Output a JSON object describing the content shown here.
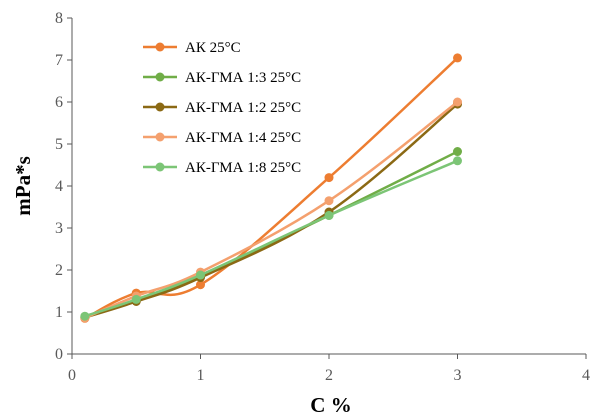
{
  "chart_data": {
    "type": "line",
    "title": "",
    "xlabel": "C %",
    "ylabel": "mPa*s",
    "xlim": [
      0,
      4
    ],
    "ylim": [
      0,
      8
    ],
    "x_ticks": [
      "0",
      "1",
      "2",
      "3",
      "4"
    ],
    "y_ticks": [
      "0",
      "1",
      "2",
      "3",
      "4",
      "5",
      "6",
      "7",
      "8"
    ],
    "grid": false,
    "legend_position": "top-left",
    "series": [
      {
        "name": "АК 25°С",
        "color": "#ED7D31",
        "x": [
          0.1,
          0.5,
          1,
          2,
          3
        ],
        "y": [
          0.85,
          1.45,
          1.65,
          4.2,
          7.05
        ]
      },
      {
        "name": "АК-ГМА 1:3 25°С",
        "color": "#70AD47",
        "x": [
          0.1,
          0.5,
          1,
          2,
          3
        ],
        "y": [
          0.88,
          1.28,
          1.85,
          3.3,
          4.82
        ]
      },
      {
        "name": "АК-ГМА 1:2 25°С",
        "color": "#8B6914",
        "x": [
          0.1,
          0.5,
          1,
          2,
          3
        ],
        "y": [
          0.87,
          1.25,
          1.82,
          3.38,
          5.95
        ]
      },
      {
        "name": "АК-ГМА 1:4 25°С",
        "color": "#F4A06E",
        "x": [
          0.1,
          0.5,
          1,
          2,
          3
        ],
        "y": [
          0.86,
          1.38,
          1.95,
          3.65,
          6.0
        ]
      },
      {
        "name": "АК-ГМА 1:8 25°С",
        "color": "#7CC576",
        "x": [
          0.1,
          0.5,
          1,
          2,
          3
        ],
        "y": [
          0.9,
          1.3,
          1.88,
          3.3,
          4.6
        ]
      }
    ]
  }
}
